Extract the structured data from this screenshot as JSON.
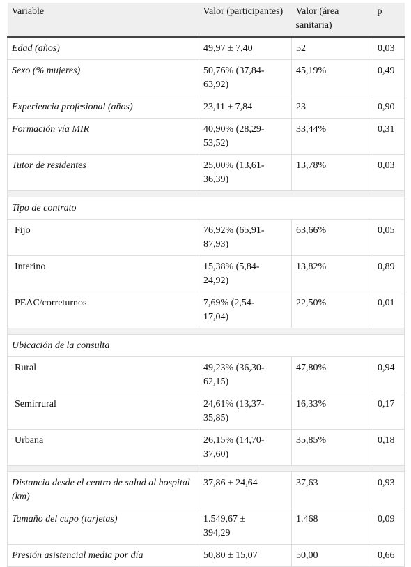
{
  "table": {
    "header": [
      "Variable",
      "Valor (participantes)",
      "Valor (área sanitaria)",
      "p"
    ],
    "blocks": [
      {
        "rows": [
          [
            "Edad (años)",
            "49,97 ± 7,40",
            "52",
            "0,03"
          ],
          [
            "Sexo (% mujeres)",
            "50,76% (37,84-63,92)",
            "45,19%",
            "0,49"
          ],
          [
            "Experiencia profesional (años)",
            "23,11 ± 7,84",
            "23",
            "0,90"
          ],
          [
            "Formación vía MIR",
            "40,90% (28,29-53,52)",
            "33,44%",
            "0,31"
          ],
          [
            "Tutor de residentes",
            "25,00% (13,61-36,39)",
            "13,78%",
            "0,03"
          ]
        ]
      },
      {
        "title": "Tipo de contrato",
        "rows": [
          [
            "Fijo",
            "76,92% (65,91-87,93)",
            "63,66%",
            "0,05"
          ],
          [
            "Interino",
            "15,38% (5,84-24,92)",
            "13,82%",
            "0,89"
          ],
          [
            "PEAC/correturnos",
            "7,69% (2,54-17,04)",
            "22,50%",
            "0,01"
          ]
        ]
      },
      {
        "title": "Ubicación de la consulta",
        "rows": [
          [
            "Rural",
            "49,23% (36,30-62,15)",
            "47,80%",
            "0,94"
          ],
          [
            "Semirrural",
            "24,61% (13,37-35,85)",
            "16,33%",
            "0,17"
          ],
          [
            "Urbana",
            "26,15% (14,70-37,60)",
            "35,85%",
            "0,18"
          ]
        ]
      },
      {
        "rows": [
          [
            "Distancia desde el centro de salud al hospital (km)",
            "37,86 ± 24,64",
            "37,63",
            "0,93"
          ],
          [
            "Tamaño del cupo (tarjetas)",
            "1.549,67 ± 394,29",
            "1.468",
            "0,09"
          ],
          [
            "Presión asistencial media por día",
            "50,80 ± 15,07",
            "50,00",
            "0,66"
          ]
        ]
      }
    ]
  }
}
